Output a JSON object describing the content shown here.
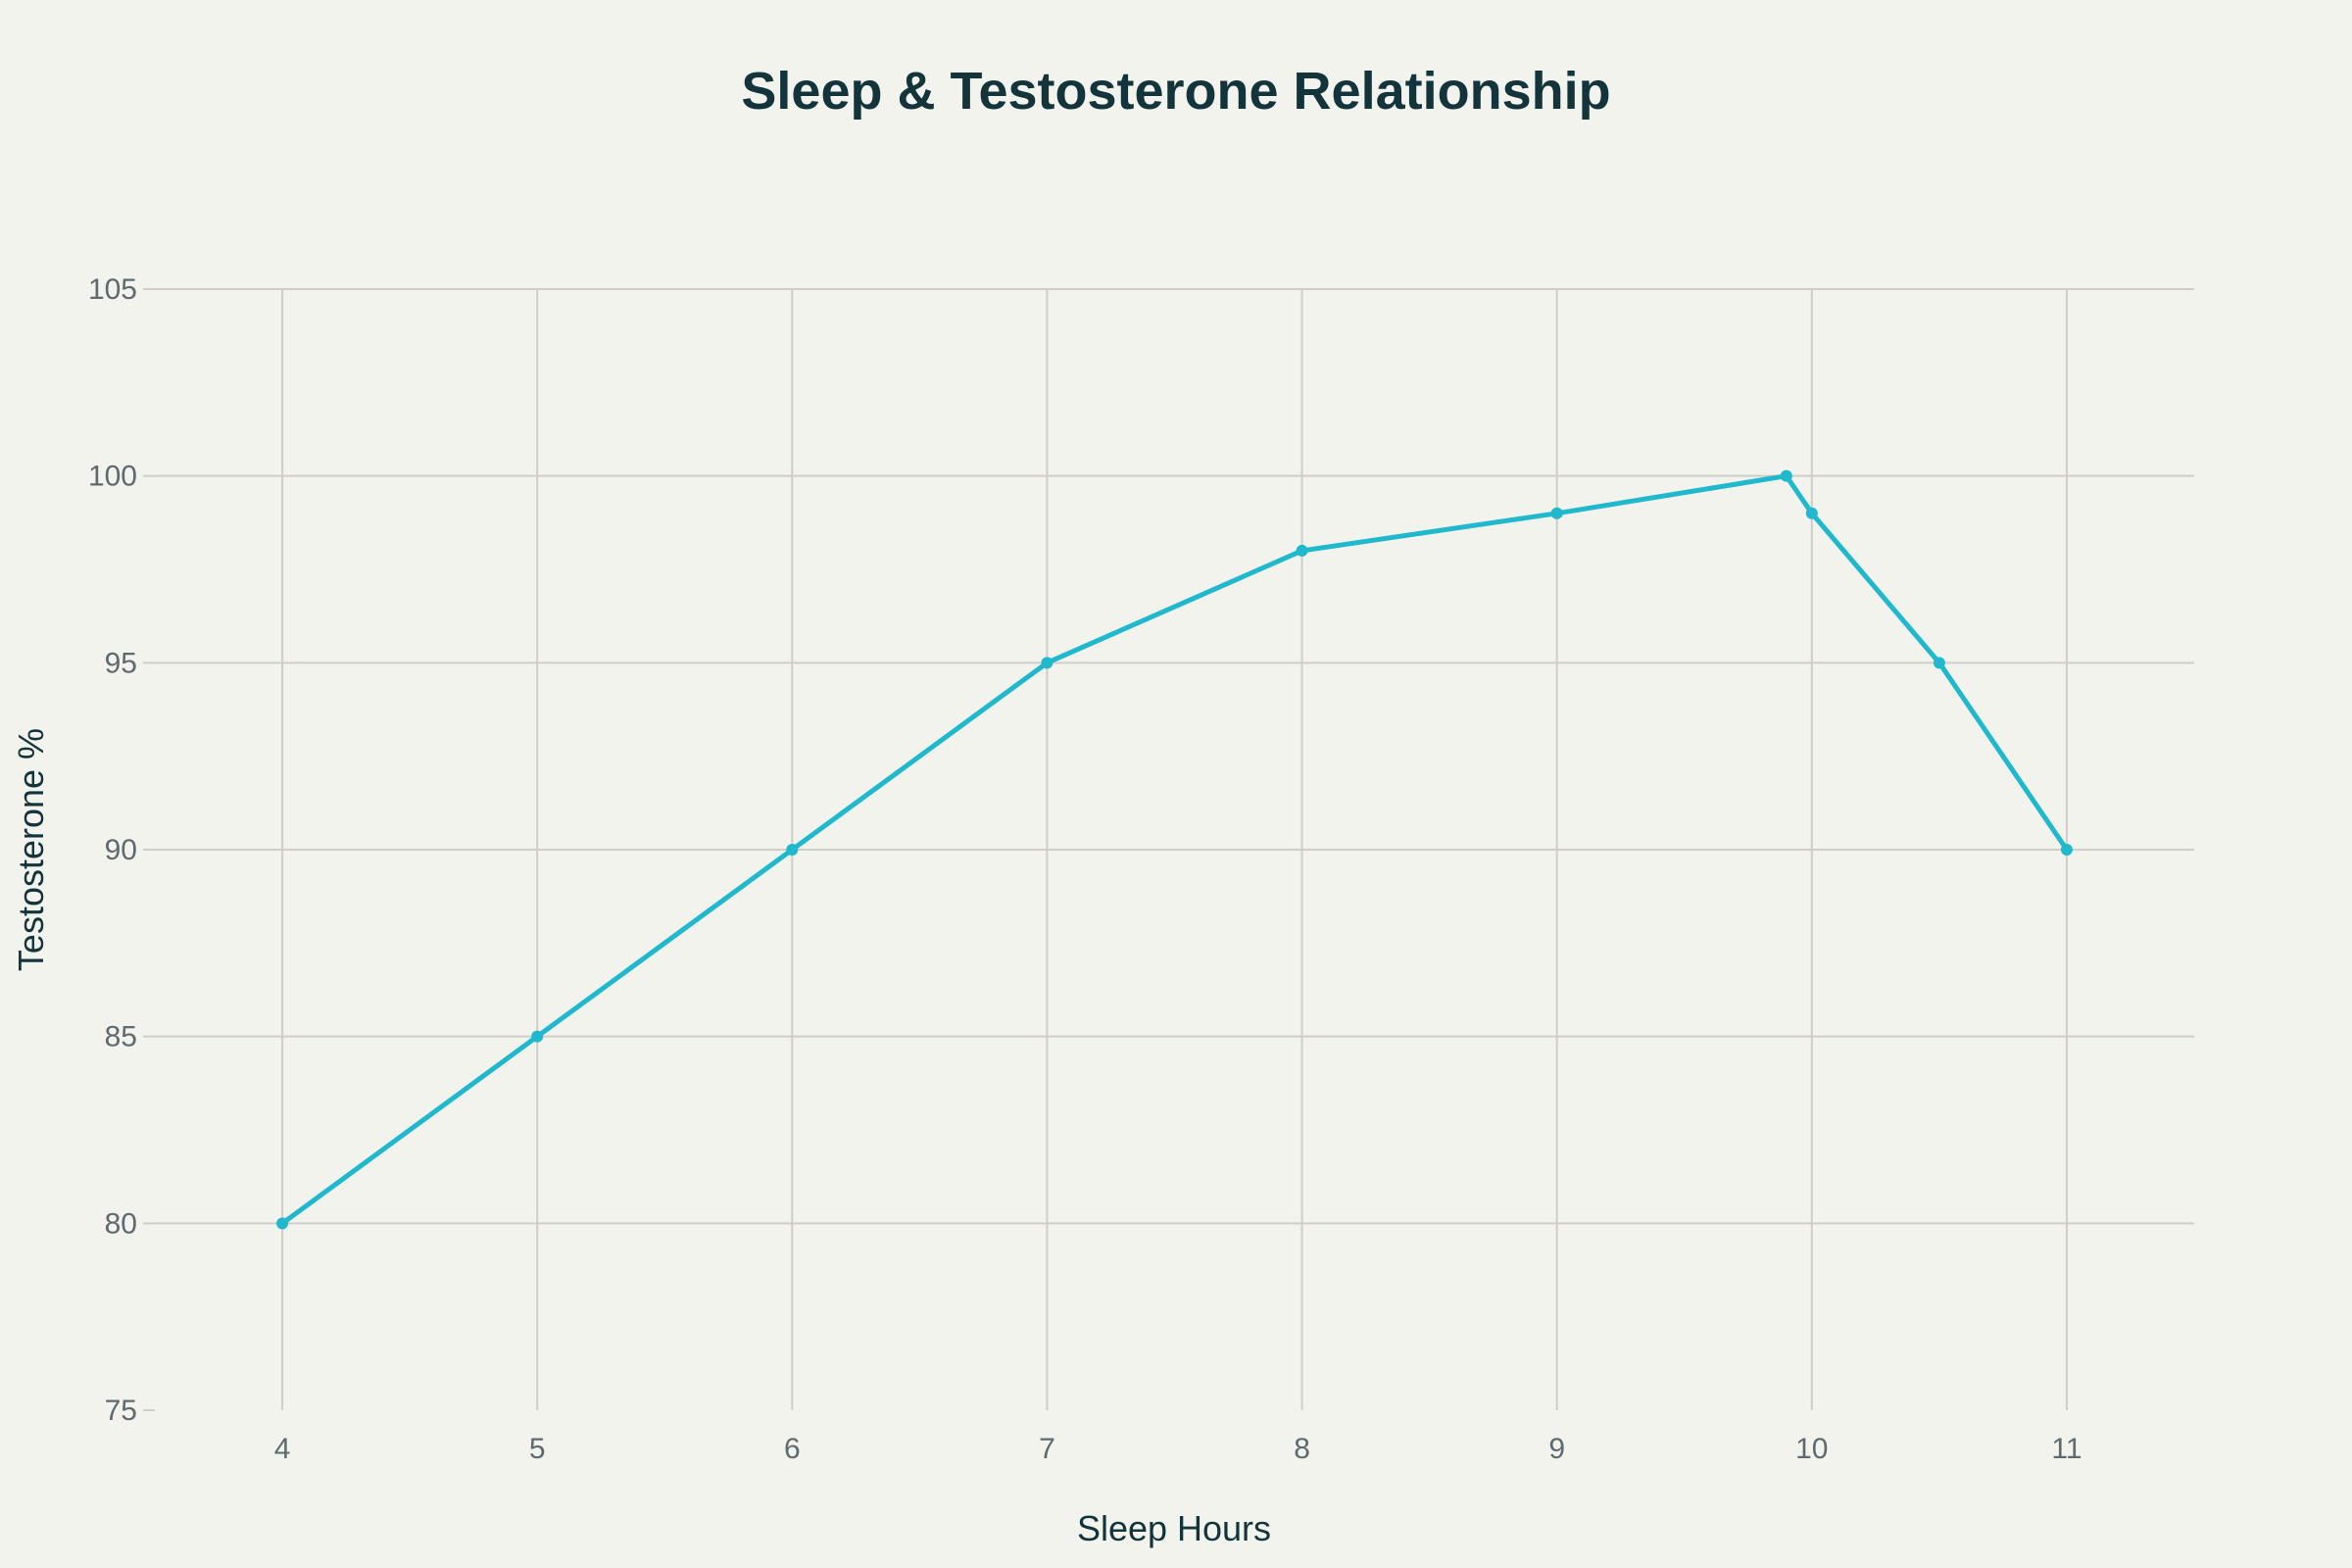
{
  "chart_data": {
    "type": "line",
    "title": "Sleep & Testosterone Relationship",
    "xlabel": "Sleep Hours",
    "ylabel": "Testosterone %",
    "x": [
      4,
      5,
      6,
      7,
      8,
      9,
      9.9,
      10,
      10.5,
      11
    ],
    "y": [
      80,
      85,
      90,
      95,
      98,
      99,
      100,
      99,
      95,
      90
    ],
    "xlim": [
      3.5,
      11.5
    ],
    "ylim": [
      75,
      105
    ],
    "xticks": [
      4,
      5,
      6,
      7,
      8,
      9,
      10,
      11
    ],
    "yticks": [
      75,
      80,
      85,
      90,
      95,
      100,
      105
    ],
    "grid": true,
    "line_color": "#1fb8cd",
    "markers": true
  }
}
